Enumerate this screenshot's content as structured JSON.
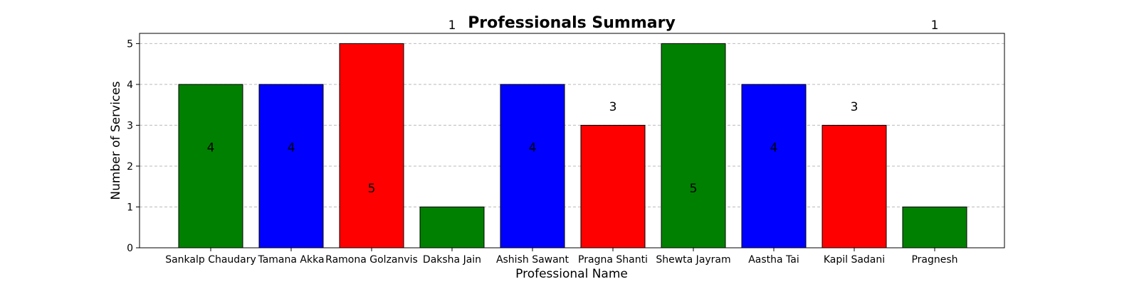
{
  "chart_data": {
    "type": "bar",
    "title": "Professionals Summary",
    "xlabel": "Professional Name",
    "ylabel": "Number of Services",
    "categories": [
      "Sankalp Chaudary",
      "Tamana Akka",
      "Ramona Golzanvis",
      "Daksha Jain",
      "Ashish Sawant",
      "Pragna Shanti",
      "Shewta Jayram",
      "Aastha Tai",
      "Kapil Sadani",
      "Pragnesh"
    ],
    "values": [
      4,
      4,
      5,
      1,
      4,
      3,
      5,
      4,
      3,
      1
    ],
    "bar_colors": [
      "#008000",
      "#0000ff",
      "#ff0000",
      "#008000",
      "#0000ff",
      "#ff0000",
      "#008000",
      "#0000ff",
      "#ff0000",
      "#008000"
    ],
    "data_labels": [
      "4",
      "4",
      "5",
      "1",
      "4",
      "3",
      "5",
      "4",
      "3",
      "1"
    ],
    "ylim": [
      0,
      5.25
    ],
    "yticks": [
      0,
      1,
      2,
      3,
      4,
      5
    ],
    "grid": "y-dashed",
    "edge_color": "#000000",
    "grid_color": "#bbbbbb"
  }
}
